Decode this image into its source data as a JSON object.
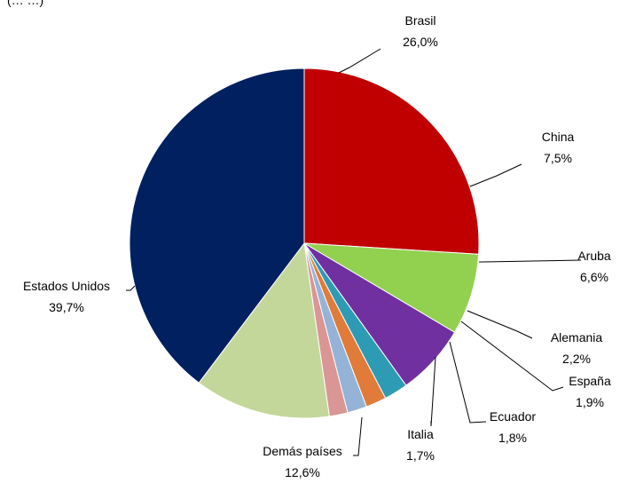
{
  "chart_data": {
    "type": "pie",
    "title": "",
    "clipped_title_fragment": "(…   …)",
    "start_angle_deg": 0,
    "direction": "clockwise",
    "slices": [
      {
        "label": "Brasil",
        "value": 26.0,
        "display": "26,0%",
        "color": "#C00000"
      },
      {
        "label": "China",
        "value": 7.5,
        "display": "7,5%",
        "color": "#92D050"
      },
      {
        "label": "Aruba",
        "value": 6.6,
        "display": "6,6%",
        "color": "#7030A0"
      },
      {
        "label": "Alemania",
        "value": 2.2,
        "display": "2,2%",
        "color": "#2E9BB5"
      },
      {
        "label": "España",
        "value": 1.9,
        "display": "1,9%",
        "color": "#E07B39"
      },
      {
        "label": "Ecuador",
        "value": 1.8,
        "display": "1,8%",
        "color": "#95B3D7"
      },
      {
        "label": "Italia",
        "value": 1.7,
        "display": "1,7%",
        "color": "#D99694"
      },
      {
        "label": "Demás países",
        "value": 12.6,
        "display": "12,6%",
        "color": "#C4D79B"
      },
      {
        "label": "Estados Unidos",
        "value": 39.7,
        "display": "39,7%",
        "color": "#002060"
      }
    ]
  }
}
